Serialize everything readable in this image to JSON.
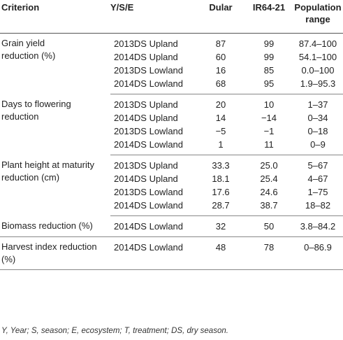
{
  "headers": {
    "criterion": "Criterion",
    "yse": "Y/S/E",
    "dular": "Dular",
    "ir64": "IR64-21",
    "range_line1": "Population",
    "range_line2": "range"
  },
  "groups": [
    {
      "criterion_lines": [
        "Grain yield",
        "reduction (%)"
      ],
      "rows": [
        {
          "yse": "2013DS Upland",
          "dular": "87",
          "ir64": "99",
          "range": "87.4–100"
        },
        {
          "yse": "2014DS Upland",
          "dular": "60",
          "ir64": "99",
          "range": "54.1–100"
        },
        {
          "yse": "2013DS Lowland",
          "dular": "16",
          "ir64": "85",
          "range": "0.0–100"
        },
        {
          "yse": "2014DS Lowland",
          "dular": "68",
          "ir64": "95",
          "range": "1.9–95.3"
        }
      ]
    },
    {
      "criterion_lines": [
        "Days to flowering",
        "reduction"
      ],
      "rows": [
        {
          "yse": "2013DS Upland",
          "dular": "20",
          "ir64": "10",
          "range": "1–37"
        },
        {
          "yse": "2014DS Upland",
          "dular": "14",
          "ir64": "−14",
          "range": "0–34"
        },
        {
          "yse": "2013DS Lowland",
          "dular": "−5",
          "ir64": "−1",
          "range": "0–18"
        },
        {
          "yse": "2014DS Lowland",
          "dular": "1",
          "ir64": "11",
          "range": "0–9"
        }
      ]
    },
    {
      "criterion_lines": [
        "Plant height at maturity",
        "reduction (cm)"
      ],
      "rows": [
        {
          "yse": "2013DS Upland",
          "dular": "33.3",
          "ir64": "25.0",
          "range": "5–67"
        },
        {
          "yse": "2014DS Upland",
          "dular": "18.1",
          "ir64": "25.4",
          "range": "4–67"
        },
        {
          "yse": "2013DS Lowland",
          "dular": "17.6",
          "ir64": "24.6",
          "range": "1–75"
        },
        {
          "yse": "2014DS Lowland",
          "dular": "28.7",
          "ir64": "38.7",
          "range": "18–82"
        }
      ]
    },
    {
      "criterion_lines": [
        "Biomass reduction (%)"
      ],
      "rows": [
        {
          "yse": "2014DS Lowland",
          "dular": "32",
          "ir64": "50",
          "range": "3.8–84.2"
        }
      ]
    },
    {
      "criterion_lines": [
        "Harvest index reduction",
        "(%)"
      ],
      "rows": [
        {
          "yse": "2014DS Lowland",
          "dular": "48",
          "ir64": "78",
          "range": "0–86.9"
        }
      ]
    }
  ],
  "footnote": "Y, Year; S, season; E, ecosystem; T, treatment; DS, dry season."
}
